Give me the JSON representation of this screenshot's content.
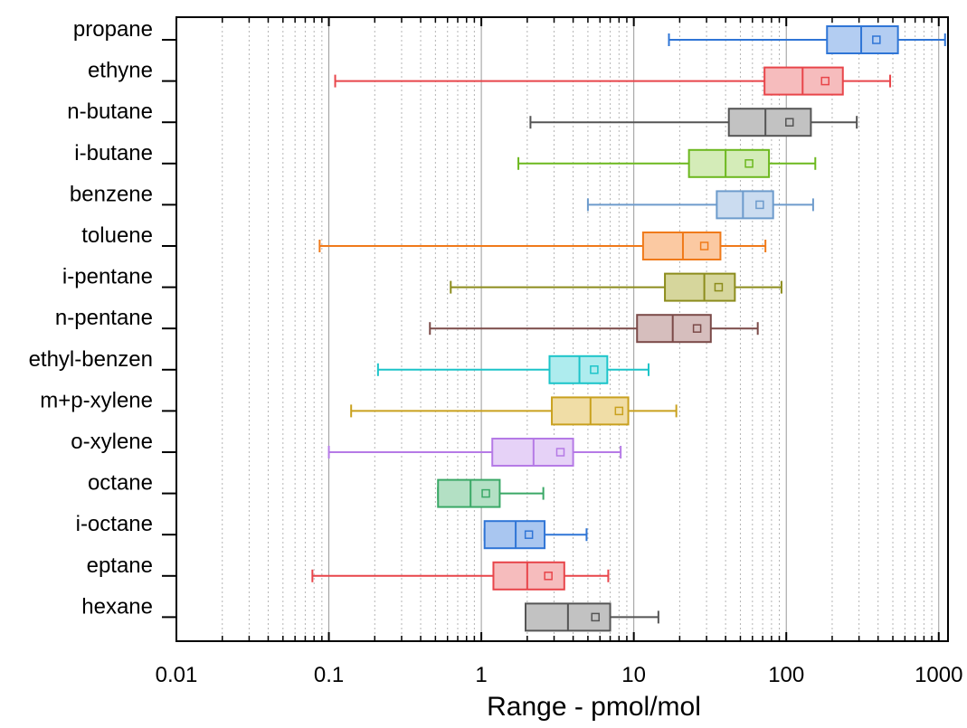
{
  "chart_data": {
    "type": "boxplot",
    "orientation": "horizontal",
    "xlabel": "Range - pmol/mol",
    "ylabel": "",
    "x_scale": "log",
    "xlim": [
      0.01,
      1150
    ],
    "x_ticks": [
      0.01,
      0.1,
      1,
      10,
      100,
      1000
    ],
    "x_tick_labels": [
      "0.01",
      "0.1",
      "1",
      "10",
      "100",
      "1000"
    ],
    "grid": "vertical major solid, minor dotted",
    "legend": "none",
    "categories": [
      "propane",
      "ethyne",
      "n-butane",
      "i-butane",
      "benzene",
      "toluene",
      "i-pentane",
      "n-pentane",
      "ethyl-benzen",
      "m+p-xylene",
      "o-xylene",
      "octane",
      "i-octane",
      "eptane",
      "hexane"
    ],
    "boxes": [
      {
        "label": "propane",
        "whisker_low": 17,
        "q1": 185,
        "median": 310,
        "q3": 540,
        "whisker_high": 1100,
        "mean": 390,
        "color": "#2f75d6",
        "fill": "#b3cdf2"
      },
      {
        "label": "ethyne",
        "whisker_low": 0.11,
        "q1": 72,
        "median": 128,
        "q3": 235,
        "whisker_high": 480,
        "mean": 180,
        "color": "#e8454a",
        "fill": "#f6bcbd"
      },
      {
        "label": "n-butane",
        "whisker_low": 2.1,
        "q1": 42,
        "median": 73,
        "q3": 145,
        "whisker_high": 290,
        "mean": 105,
        "color": "#555555",
        "fill": "#c2c2c2"
      },
      {
        "label": "i-butane",
        "whisker_low": 1.75,
        "q1": 23,
        "median": 40,
        "q3": 77,
        "whisker_high": 155,
        "mean": 57,
        "color": "#6cb81e",
        "fill": "#d4ecb8"
      },
      {
        "label": "benzene",
        "whisker_low": 5,
        "q1": 35,
        "median": 52,
        "q3": 82,
        "whisker_high": 150,
        "mean": 67,
        "color": "#6d9bcc",
        "fill": "#cbdcf0"
      },
      {
        "label": "toluene",
        "whisker_low": 0.087,
        "q1": 11.5,
        "median": 21,
        "q3": 37,
        "whisker_high": 73,
        "mean": 29,
        "color": "#f07a1a",
        "fill": "#fbc9a2"
      },
      {
        "label": "i-pentane",
        "whisker_low": 0.63,
        "q1": 16,
        "median": 29,
        "q3": 46,
        "whisker_high": 93,
        "mean": 36,
        "color": "#8c8c1c",
        "fill": "#d6d69c"
      },
      {
        "label": "n-pentane",
        "whisker_low": 0.46,
        "q1": 10.5,
        "median": 18,
        "q3": 32,
        "whisker_high": 65,
        "mean": 26,
        "color": "#7b4a48",
        "fill": "#d6bebd"
      },
      {
        "label": "ethyl-benzen",
        "whisker_low": 0.21,
        "q1": 2.8,
        "median": 4.4,
        "q3": 6.7,
        "whisker_high": 12.5,
        "mean": 5.5,
        "color": "#1cc4c9",
        "fill": "#aeecee"
      },
      {
        "label": "m+p-xylene",
        "whisker_low": 0.14,
        "q1": 2.9,
        "median": 5.2,
        "q3": 9.2,
        "whisker_high": 19,
        "mean": 8,
        "color": "#c9a11e",
        "fill": "#f0dda6"
      },
      {
        "label": "o-xylene",
        "whisker_low": 0.1,
        "q1": 1.18,
        "median": 2.2,
        "q3": 4,
        "whisker_high": 8.2,
        "mean": 3.3,
        "color": "#b57ae6",
        "fill": "#e6d2f7"
      },
      {
        "label": "octane",
        "whisker_low": 0.52,
        "q1": 0.52,
        "median": 0.85,
        "q3": 1.32,
        "whisker_high": 2.55,
        "mean": 1.07,
        "color": "#3aa866",
        "fill": "#b3e0c4"
      },
      {
        "label": "i-octane",
        "whisker_low": 1.05,
        "q1": 1.05,
        "median": 1.68,
        "q3": 2.6,
        "whisker_high": 4.9,
        "mean": 2.05,
        "color": "#2f75d6",
        "fill": "#a9c6f0"
      },
      {
        "label": "eptane",
        "whisker_low": 0.078,
        "q1": 1.2,
        "median": 2,
        "q3": 3.5,
        "whisker_high": 6.8,
        "mean": 2.75,
        "color": "#e8454a",
        "fill": "#f6bcbd"
      },
      {
        "label": "hexane",
        "whisker_low": 1.95,
        "q1": 1.95,
        "median": 3.7,
        "q3": 7,
        "whisker_high": 14.5,
        "mean": 5.6,
        "color": "#555555",
        "fill": "#c2c2c2"
      }
    ]
  }
}
